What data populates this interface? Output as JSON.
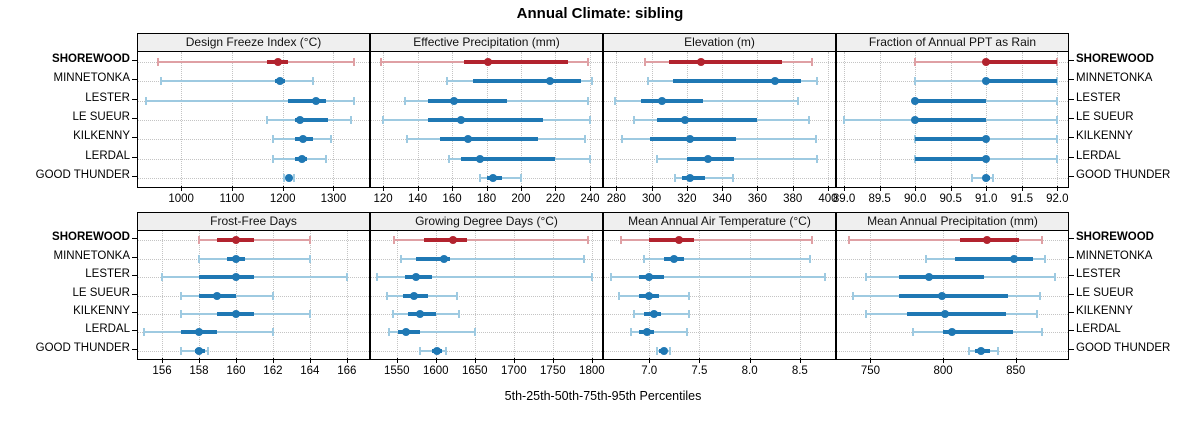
{
  "title": "Annual Climate: sibling",
  "xlabel": "5th-25th-50th-75th-95th Percentiles",
  "sites": [
    "SHOREWOOD",
    "MINNETONKA",
    "LESTER",
    "LE SUEUR",
    "KILKENNY",
    "LERDAL",
    "GOOD THUNDER"
  ],
  "highlight_site": "SHOREWOOD",
  "colors": {
    "highlight_dark": "#b2232e",
    "highlight_light": "#dfa0a4",
    "normal_dark": "#1f78b4",
    "normal_light": "#9ecae1",
    "grid": "#c4c4c4",
    "strip_bg": "#efefef",
    "border": "#000000"
  },
  "chart_data": {
    "type": "dotplot-interval",
    "percentiles": [
      "5th",
      "25th",
      "50th",
      "75th",
      "95th"
    ],
    "legend_position": "none",
    "grid": "dotted",
    "panels": [
      {
        "row": "top",
        "title": "Design Freeze Index (°C)",
        "domain": [
          915,
          1370
        ],
        "ticks": [
          1000,
          1100,
          1200,
          1300
        ],
        "tick_labels": [
          "1000",
          "1100",
          "1200",
          "1300"
        ],
        "values": {
          "SHOREWOOD": [
            955,
            1170,
            1190,
            1210,
            1340
          ],
          "MINNETONKA": [
            960,
            1185,
            1195,
            1205,
            1260
          ],
          "LESTER": [
            930,
            1210,
            1265,
            1285,
            1340
          ],
          "LE SUEUR": [
            1170,
            1225,
            1235,
            1290,
            1335
          ],
          "KILKENNY": [
            1180,
            1225,
            1240,
            1260,
            1295
          ],
          "LERDAL": [
            1180,
            1225,
            1238,
            1248,
            1285
          ],
          "GOOD THUNDER": [
            1203,
            1208,
            1212,
            1218,
            1222
          ]
        }
      },
      {
        "row": "top",
        "title": "Effective Precipitation (mm)",
        "domain": [
          113,
          247
        ],
        "ticks": [
          120,
          140,
          160,
          180,
          200,
          220,
          240
        ],
        "tick_labels": [
          "120",
          "140",
          "160",
          "180",
          "200",
          "220",
          "240"
        ],
        "values": {
          "SHOREWOOD": [
            119,
            167,
            181,
            227,
            239
          ],
          "MINNETONKA": [
            157,
            172,
            217,
            235,
            241
          ],
          "LESTER": [
            133,
            146,
            161,
            192,
            239
          ],
          "LE SUEUR": [
            120,
            146,
            165,
            213,
            240
          ],
          "KILKENNY": [
            134,
            153,
            169,
            210,
            237
          ],
          "LERDAL": [
            158,
            165,
            176,
            220,
            240
          ],
          "GOOD THUNDER": [
            176,
            180,
            184,
            189,
            200
          ]
        }
      },
      {
        "row": "top",
        "title": "Elevation (m)",
        "domain": [
          273,
          404
        ],
        "ticks": [
          280,
          300,
          320,
          340,
          360,
          380,
          400
        ],
        "tick_labels": [
          "280",
          "300",
          "320",
          "340",
          "360",
          "380",
          "400"
        ],
        "values": {
          "SHOREWOOD": [
            296,
            310,
            328,
            374,
            391
          ],
          "MINNETONKA": [
            298,
            312,
            370,
            385,
            394
          ],
          "LESTER": [
            279,
            294,
            306,
            329,
            383
          ],
          "LE SUEUR": [
            290,
            303,
            319,
            360,
            389
          ],
          "KILKENNY": [
            283,
            299,
            322,
            348,
            393
          ],
          "LERDAL": [
            303,
            320,
            332,
            347,
            394
          ],
          "GOOD THUNDER": [
            313,
            317,
            322,
            330,
            346
          ]
        }
      },
      {
        "row": "top",
        "title": "Fraction of Annual PPT as Rain",
        "domain": [
          88.9,
          92.15
        ],
        "ticks": [
          89.0,
          89.5,
          90.0,
          90.5,
          91.0,
          91.5,
          92.0
        ],
        "tick_labels": [
          "89.0",
          "89.5",
          "90.0",
          "90.5",
          "91.0",
          "91.5",
          "92.0"
        ],
        "values": {
          "SHOREWOOD": [
            90,
            91,
            91,
            92,
            92
          ],
          "MINNETONKA": [
            90,
            91,
            91,
            92,
            92
          ],
          "LESTER": [
            90,
            90,
            90,
            91,
            92
          ],
          "LE SUEUR": [
            89,
            90,
            90,
            91,
            92
          ],
          "KILKENNY": [
            90,
            90,
            91,
            91,
            92
          ],
          "LERDAL": [
            90,
            90,
            91,
            91,
            92
          ],
          "GOOD THUNDER": [
            90.8,
            90.95,
            91,
            91.05,
            91.1
          ]
        }
      },
      {
        "row": "bottom",
        "title": "Frost-Free Days",
        "domain": [
          154.7,
          167.2
        ],
        "ticks": [
          156,
          158,
          160,
          162,
          164,
          166
        ],
        "tick_labels": [
          "156",
          "158",
          "160",
          "162",
          "164",
          "166"
        ],
        "values": {
          "SHOREWOOD": [
            158,
            159,
            160,
            161,
            164
          ],
          "MINNETONKA": [
            158,
            159.5,
            160,
            160.5,
            164
          ],
          "LESTER": [
            156,
            158,
            160,
            161,
            166
          ],
          "LE SUEUR": [
            157,
            158,
            159,
            160,
            162
          ],
          "KILKENNY": [
            157,
            159,
            160,
            161,
            164
          ],
          "LERDAL": [
            155,
            157,
            158,
            159,
            162
          ],
          "GOOD THUNDER": [
            157,
            157.8,
            158,
            158.3,
            158.5
          ]
        }
      },
      {
        "row": "bottom",
        "title": "Growing Degree Days (°C)",
        "domain": [
          1517,
          1813
        ],
        "ticks": [
          1550,
          1600,
          1650,
          1700,
          1750,
          1800
        ],
        "tick_labels": [
          "1550",
          "1600",
          "1650",
          "1700",
          "1750",
          "1800"
        ],
        "values": {
          "SHOREWOOD": [
            1547,
            1585,
            1622,
            1640,
            1795
          ],
          "MINNETONKA": [
            1555,
            1575,
            1610,
            1618,
            1790
          ],
          "LESTER": [
            1525,
            1560,
            1575,
            1595,
            1800
          ],
          "LE SUEUR": [
            1538,
            1558,
            1572,
            1590,
            1627
          ],
          "KILKENNY": [
            1545,
            1565,
            1580,
            1600,
            1630
          ],
          "LERDAL": [
            1540,
            1552,
            1562,
            1580,
            1650
          ],
          "GOOD THUNDER": [
            1580,
            1595,
            1602,
            1608,
            1613
          ]
        }
      },
      {
        "row": "bottom",
        "title": "Mean Annual Air Temperature (°C)",
        "domain": [
          6.55,
          8.85
        ],
        "ticks": [
          7.0,
          7.5,
          8.0,
          8.5
        ],
        "tick_labels": [
          "7.0",
          "7.5",
          "8.0",
          "8.5"
        ],
        "values": {
          "SHOREWOOD": [
            6.72,
            7.0,
            7.3,
            7.45,
            8.62
          ],
          "MINNETONKA": [
            6.95,
            7.15,
            7.25,
            7.35,
            8.6
          ],
          "LESTER": [
            6.62,
            6.9,
            7.0,
            7.15,
            8.75
          ],
          "LE SUEUR": [
            6.7,
            6.9,
            7.0,
            7.1,
            7.4
          ],
          "KILKENNY": [
            6.85,
            6.95,
            7.05,
            7.12,
            7.4
          ],
          "LERDAL": [
            6.82,
            6.9,
            6.98,
            7.05,
            7.38
          ],
          "GOOD THUNDER": [
            7.08,
            7.1,
            7.15,
            7.18,
            7.21
          ]
        }
      },
      {
        "row": "bottom",
        "title": "Mean Annual Precipitation (mm)",
        "domain": [
          727,
          886
        ],
        "ticks": [
          750,
          800,
          850
        ],
        "tick_labels": [
          "750",
          "800",
          "850"
        ],
        "values": {
          "SHOREWOOD": [
            735,
            812,
            830,
            852,
            868
          ],
          "MINNETONKA": [
            788,
            808,
            849,
            862,
            870
          ],
          "LESTER": [
            747,
            770,
            790,
            828,
            877
          ],
          "LE SUEUR": [
            738,
            770,
            799,
            845,
            867
          ],
          "KILKENNY": [
            747,
            775,
            801,
            843,
            865
          ],
          "LERDAL": [
            779,
            800,
            806,
            848,
            868
          ],
          "GOOD THUNDER": [
            818,
            822,
            826,
            832,
            838
          ]
        }
      }
    ]
  }
}
